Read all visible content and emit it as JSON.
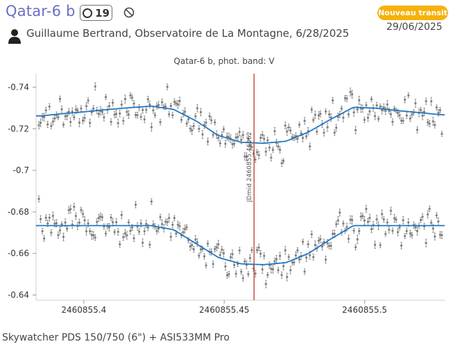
{
  "header": {
    "title": "Qatar-6 b",
    "count": "19",
    "badge": "Nouveau transit",
    "date": "29/06/2025",
    "observer": "Guillaume Bertrand, Observatoire de La Montagne, 6/28/2025"
  },
  "footer": {
    "equipment": "Skywatcher PDS 150/750 (6\") + ASI533MM Pro"
  },
  "icons": {
    "count": "circle-icon",
    "ban": "ban-icon",
    "user": "user-icon"
  },
  "colors": {
    "title": "#6a6fc4",
    "badge": "#f5b20c",
    "model": "#1f77c4",
    "points": "#7f7f7f",
    "mid_line": "#c0392b"
  },
  "chart_data": {
    "type": "scatter",
    "title": "Qatar-6 b, phot. band: V",
    "xlim": [
      2460855.383,
      2460855.5285
    ],
    "ylim": [
      -0.7465,
      -0.6375
    ],
    "x_ticks": [
      2460855.4,
      2460855.45,
      2460855.5
    ],
    "x_tick_labels": [
      "2460855.4",
      "2460855.45",
      "2460855.5"
    ],
    "y_ticks": [
      -0.74,
      -0.72,
      -0.7,
      -0.68,
      -0.66,
      -0.64
    ],
    "y_tick_labels": [
      "-0.74",
      "-0.72",
      "-0.7",
      "-0.68",
      "-0.66",
      "-0.64"
    ],
    "mid_transit": {
      "x": 2460855.46062,
      "label": "JDmid 2460855.46062"
    },
    "series": [
      {
        "x": [
          2460855.385,
          2460855.392,
          2460855.4,
          2460855.408,
          2460855.416,
          2460855.424,
          2460855.432,
          2460855.44,
          2460855.448,
          2460855.456,
          2460855.464,
          2460855.472,
          2460855.48,
          2460855.488,
          2460855.496,
          2460855.504,
          2460855.512,
          2460855.52,
          2460855.5275
        ],
        "y": [
          -0.7262,
          -0.7272,
          -0.7281,
          -0.7292,
          -0.7301,
          -0.7309,
          -0.7293,
          -0.7237,
          -0.7167,
          -0.7135,
          -0.713,
          -0.714,
          -0.7184,
          -0.7246,
          -0.7303,
          -0.7299,
          -0.7287,
          -0.7277,
          -0.7267
        ]
      },
      {
        "x": [
          2460855.385,
          2460855.392,
          2460855.4,
          2460855.408,
          2460855.416,
          2460855.424,
          2460855.432,
          2460855.44,
          2460855.448,
          2460855.456,
          2460855.464,
          2460855.472,
          2460855.48,
          2460855.488,
          2460855.496,
          2460855.504,
          2460855.512,
          2460855.52,
          2460855.5275
        ],
        "y": [
          -0.6734,
          -0.6734,
          -0.6734,
          -0.6734,
          -0.6734,
          -0.6734,
          -0.6714,
          -0.6647,
          -0.658,
          -0.655,
          -0.6546,
          -0.6556,
          -0.66,
          -0.667,
          -0.6734,
          -0.6734,
          -0.6734,
          -0.6734,
          -0.6734
        ]
      }
    ]
  }
}
